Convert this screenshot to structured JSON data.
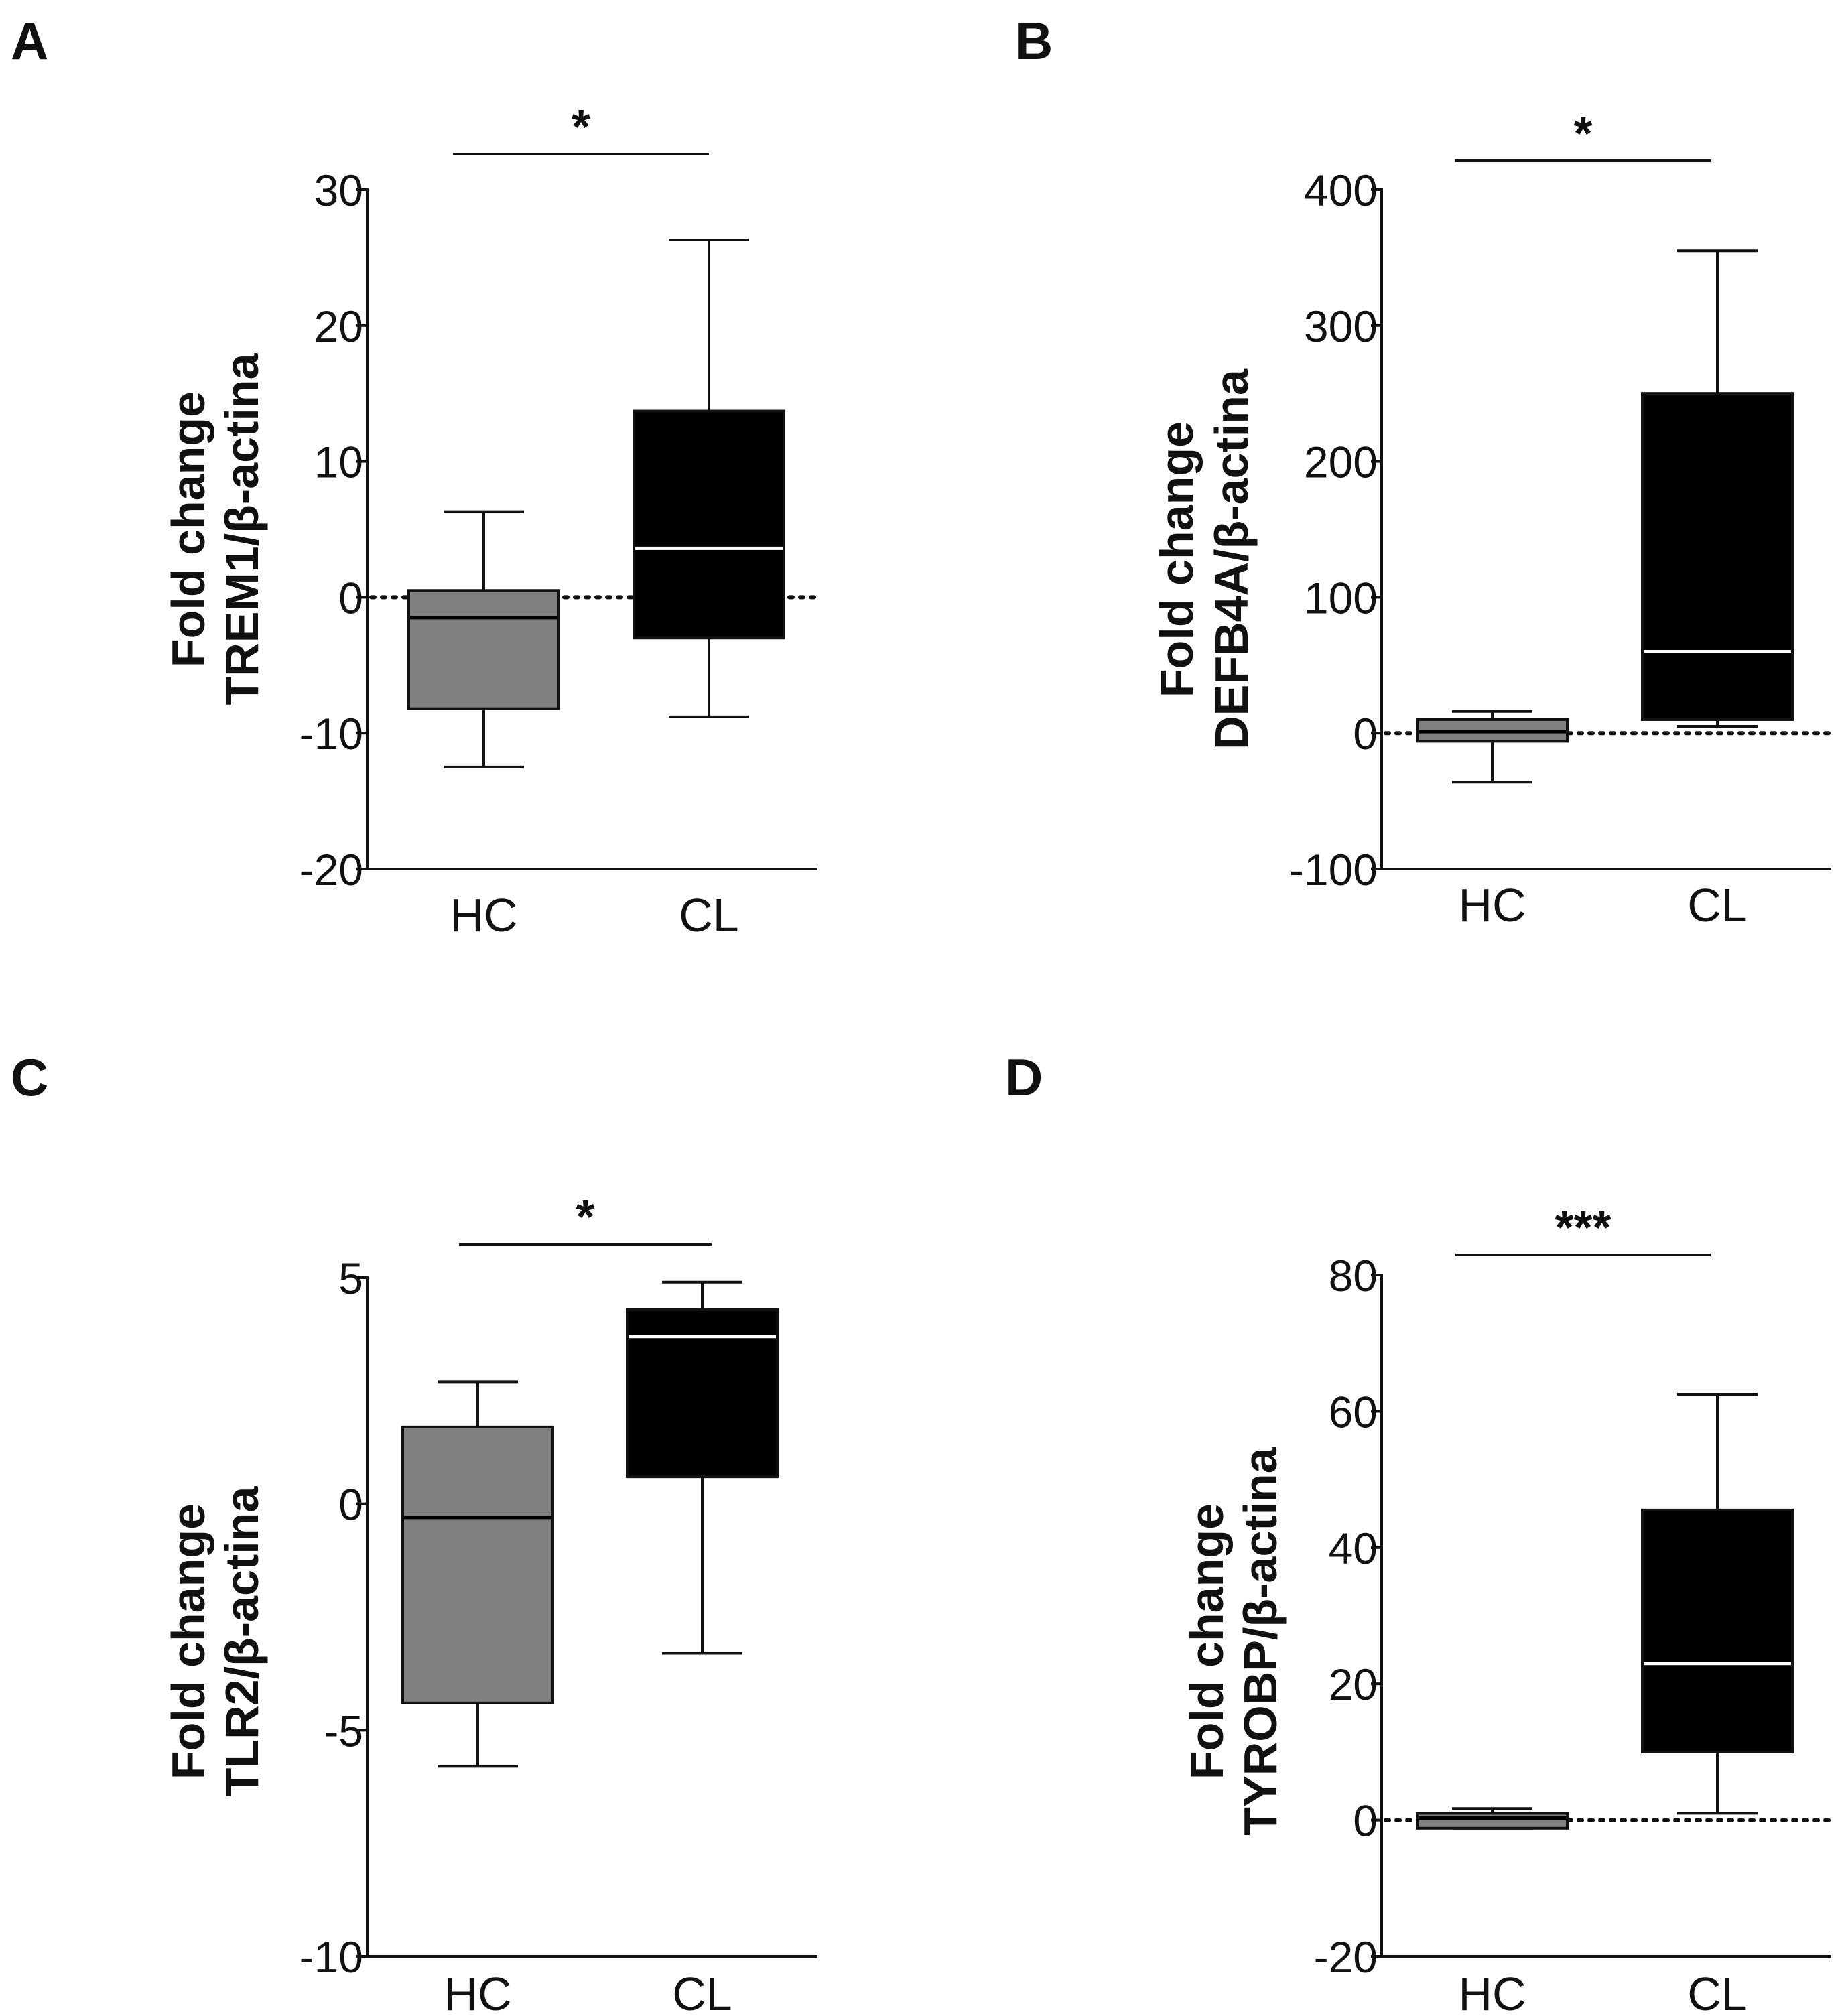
{
  "chart_data": [
    {
      "type": "box",
      "panel": "A",
      "ylabel": "Fold change",
      "ylabel2": "TREM1/β-actina",
      "ylim": [
        -20,
        30
      ],
      "yticks": [
        30,
        20,
        10,
        0,
        -10,
        -20
      ],
      "ytick_labels": [
        "30",
        "20",
        "10",
        "0",
        "-10",
        "-20"
      ],
      "reference_line": 0,
      "significance": "*",
      "categories": [
        "HC",
        "CL"
      ],
      "boxes": [
        {
          "name": "HC",
          "min": -12.5,
          "q1": -8.2,
          "median": -1.5,
          "q3": 0.5,
          "max": 6.3,
          "color": "#808080",
          "median_color": "#000000"
        },
        {
          "name": "CL",
          "min": -8.8,
          "q1": -3.0,
          "median": 3.6,
          "q3": 13.7,
          "max": 26.3,
          "color": "#000000",
          "median_color": "#ffffff"
        }
      ]
    },
    {
      "type": "box",
      "panel": "B",
      "ylabel": "Fold change",
      "ylabel2": "DEFB4A/β-actina",
      "ylim": [
        -100,
        400
      ],
      "yticks": [
        400,
        300,
        200,
        100,
        0,
        -100
      ],
      "ytick_labels": [
        "400",
        "300",
        "200",
        "100",
        "0",
        "-100"
      ],
      "reference_line": 0,
      "significance": "*",
      "categories": [
        "HC",
        "CL"
      ],
      "boxes": [
        {
          "name": "HC",
          "min": -36,
          "q1": -6,
          "median": 1,
          "q3": 10,
          "max": 16,
          "color": "#808080",
          "median_color": "#000000"
        },
        {
          "name": "CL",
          "min": 5,
          "q1": 10,
          "median": 60,
          "q3": 250,
          "max": 355,
          "color": "#000000",
          "median_color": "#ffffff"
        }
      ]
    },
    {
      "type": "box",
      "panel": "C",
      "ylabel": "Fold change",
      "ylabel2": "TLR2/β-actina",
      "ylim": [
        -10,
        5
      ],
      "yticks": [
        5,
        0,
        -5,
        -10
      ],
      "ytick_labels": [
        "5",
        "0",
        "-5",
        "-10"
      ],
      "reference_line": null,
      "significance": "*",
      "categories": [
        "HC",
        "CL"
      ],
      "boxes": [
        {
          "name": "HC",
          "min": -5.8,
          "q1": -4.4,
          "median": -0.3,
          "q3": 1.7,
          "max": 2.7,
          "color": "#808080",
          "median_color": "#000000"
        },
        {
          "name": "CL",
          "min": -3.3,
          "q1": 0.6,
          "median": 3.7,
          "q3": 4.3,
          "max": 4.9,
          "color": "#000000",
          "median_color": "#ffffff"
        }
      ]
    },
    {
      "type": "box",
      "panel": "D",
      "ylabel": "Fold change",
      "ylabel2": "TYROBP/β-actina",
      "ylim": [
        -20,
        80
      ],
      "yticks": [
        80,
        60,
        40,
        20,
        0,
        -20
      ],
      "ytick_labels": [
        "80",
        "60",
        "40",
        "20",
        "0",
        "-20"
      ],
      "reference_line": 0,
      "significance": "***",
      "categories": [
        "HC",
        "CL"
      ],
      "boxes": [
        {
          "name": "HC",
          "min": -1.2,
          "q1": -1.2,
          "median": 0.3,
          "q3": 1.0,
          "max": 1.7,
          "color": "#808080",
          "median_color": "#000000"
        },
        {
          "name": "CL",
          "min": 1.0,
          "q1": 10,
          "median": 23,
          "q3": 45.5,
          "max": 62.5,
          "color": "#000000",
          "median_color": "#ffffff"
        }
      ]
    }
  ]
}
